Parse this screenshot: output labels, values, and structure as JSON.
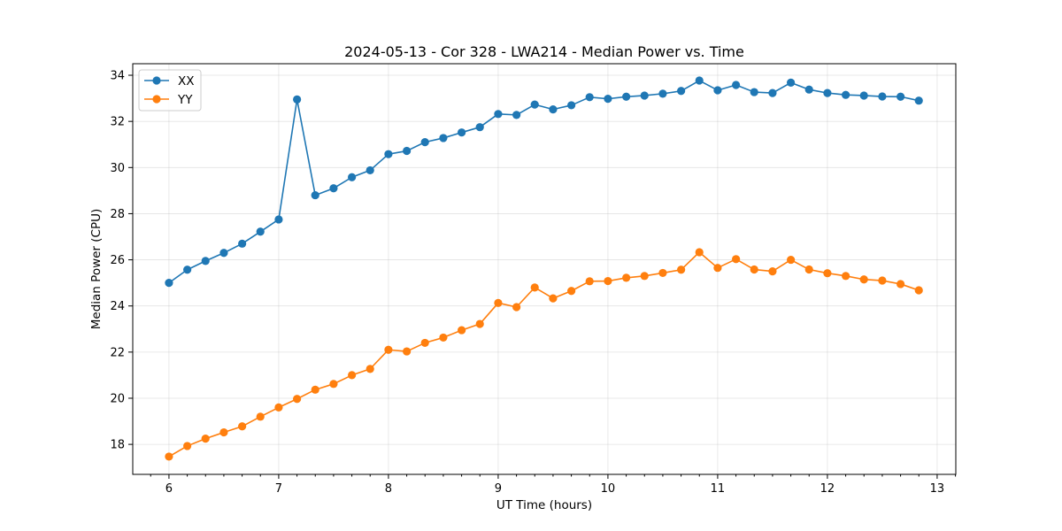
{
  "chart_data": {
    "type": "line",
    "title": "2024-05-13 - Cor 328 - LWA214 - Median Power vs. Time",
    "xlabel": "UT Time (hours)",
    "ylabel": "Median Power (CPU)",
    "xlim": [
      5.67,
      13.17
    ],
    "ylim": [
      16.7,
      34.5
    ],
    "x_ticks": [
      6,
      7,
      8,
      9,
      10,
      11,
      12,
      13
    ],
    "y_ticks": [
      18,
      20,
      22,
      24,
      26,
      28,
      30,
      32,
      34
    ],
    "grid": true,
    "legend_position": "upper-left",
    "x": [
      6.0,
      6.167,
      6.333,
      6.5,
      6.667,
      6.833,
      7.0,
      7.167,
      7.333,
      7.5,
      7.667,
      7.833,
      8.0,
      8.167,
      8.333,
      8.5,
      8.667,
      8.833,
      9.0,
      9.167,
      9.333,
      9.5,
      9.667,
      9.833,
      10.0,
      10.167,
      10.333,
      10.5,
      10.667,
      10.833,
      11.0,
      11.167,
      11.333,
      11.5,
      11.667,
      11.833,
      12.0,
      12.167,
      12.333,
      12.5,
      12.667,
      12.833
    ],
    "series": [
      {
        "name": "XX",
        "color": "#1f77b4",
        "values": [
          25.0,
          25.57,
          25.95,
          26.3,
          26.7,
          27.22,
          27.75,
          32.95,
          28.8,
          29.1,
          29.58,
          29.88,
          30.58,
          30.72,
          31.1,
          31.28,
          31.52,
          31.75,
          32.32,
          32.28,
          32.73,
          32.52,
          32.7,
          33.05,
          32.98,
          33.07,
          33.12,
          33.2,
          33.32,
          33.77,
          33.35,
          33.58,
          33.27,
          33.23,
          33.68,
          33.38,
          33.23,
          33.15,
          33.12,
          33.08,
          33.07,
          32.9
        ]
      },
      {
        "name": "YY",
        "color": "#ff7f0e",
        "values": [
          17.47,
          17.93,
          18.25,
          18.52,
          18.78,
          19.2,
          19.6,
          19.97,
          20.37,
          20.62,
          21.0,
          21.27,
          22.1,
          22.03,
          22.4,
          22.63,
          22.95,
          23.22,
          24.13,
          23.95,
          24.8,
          24.33,
          24.65,
          25.07,
          25.08,
          25.22,
          25.3,
          25.43,
          25.57,
          26.33,
          25.65,
          26.03,
          25.58,
          25.5,
          26.0,
          25.58,
          25.42,
          25.3,
          25.15,
          25.1,
          24.95,
          24.68
        ]
      }
    ]
  }
}
